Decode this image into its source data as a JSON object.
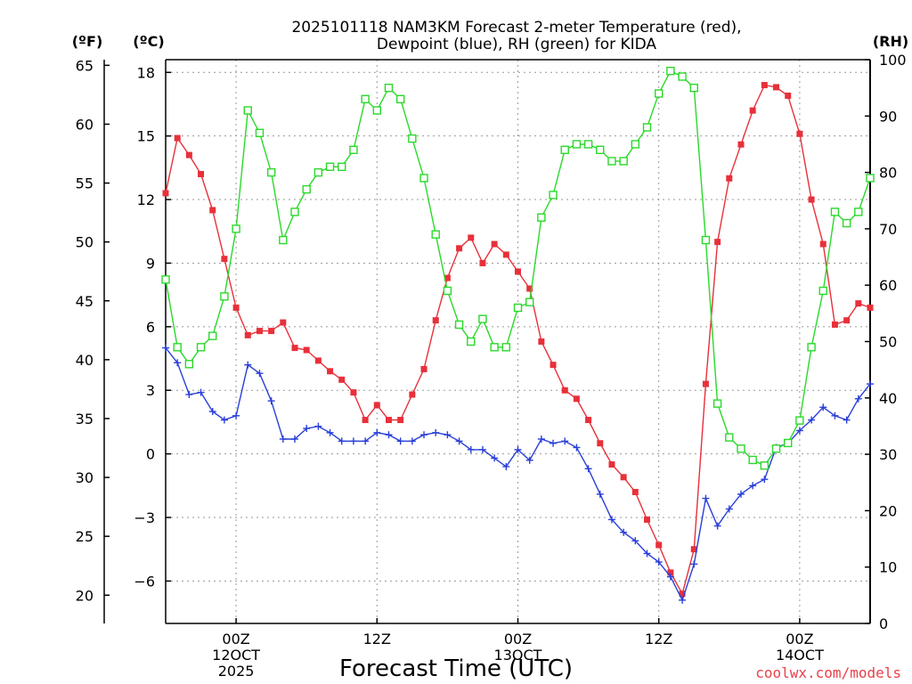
{
  "chart_data": {
    "type": "line",
    "title_line1": "2025101118 NAM3KM Forecast 2-meter Temperature (red),",
    "title_line2": "Dewpoint (blue), RH (green) for KIDA",
    "xlabel": "Forecast Time (UTC)",
    "credit": "coolwx.com/models",
    "units": {
      "fahrenheit": "(ºF)",
      "celsius": "(ºC)",
      "rh": "(RH)"
    },
    "x_hours_range": [
      0,
      60
    ],
    "celsius_axis": {
      "range": [
        -8.0,
        18.6
      ],
      "ticks": [
        18,
        15,
        12,
        9,
        6,
        3,
        0,
        -3,
        -6
      ],
      "tick_labels": [
        "18",
        "15",
        "12",
        "9",
        "6",
        "3",
        "0",
        "−3",
        "−6"
      ]
    },
    "fahrenheit_axis": {
      "ticks": [
        65,
        60,
        55,
        50,
        45,
        40,
        35,
        30,
        25,
        20
      ],
      "tick_labels": [
        "65",
        "60",
        "55",
        "50",
        "45",
        "40",
        "35",
        "30",
        "25",
        "20"
      ]
    },
    "rh_axis": {
      "range": [
        0,
        100
      ],
      "ticks": [
        100,
        90,
        80,
        70,
        60,
        50,
        40,
        30,
        20,
        10,
        0
      ],
      "tick_labels": [
        "100",
        "90",
        "80",
        "70",
        "60",
        "50",
        "40",
        "30",
        "20",
        "10",
        "0"
      ]
    },
    "x_tick_hours": [
      6,
      18,
      30,
      42,
      54
    ],
    "x_tick_labels": [
      [
        "00Z",
        "12OCT",
        "2025"
      ],
      [
        "12Z"
      ],
      [
        "00Z",
        "13OCT"
      ],
      [
        "12Z"
      ],
      [
        "00Z",
        "14OCT"
      ]
    ],
    "series": [
      {
        "name": "2-meter Temperature",
        "axis": "celsius",
        "color": "#e8303a",
        "marker": "filled-square",
        "values": [
          12.3,
          14.9,
          14.1,
          13.2,
          11.5,
          9.2,
          6.9,
          5.6,
          5.8,
          5.8,
          6.2,
          5.0,
          4.9,
          4.4,
          3.9,
          3.5,
          2.9,
          1.6,
          2.3,
          1.6,
          1.6,
          2.8,
          4.0,
          6.3,
          8.3,
          9.7,
          10.2,
          9.0,
          9.9,
          9.4,
          8.6,
          7.8,
          5.3,
          4.2,
          3.0,
          2.6,
          1.6,
          0.5,
          -0.5,
          -1.1,
          -1.8,
          -3.1,
          -4.3,
          -5.6,
          -6.6,
          -4.5,
          3.3,
          10.0,
          13.0,
          14.6,
          16.2,
          17.4,
          17.3,
          16.9,
          15.1,
          12.0,
          9.9,
          6.1,
          6.3,
          7.1,
          6.9
        ]
      },
      {
        "name": "Dewpoint",
        "axis": "celsius",
        "color": "#2a3fd8",
        "marker": "plus",
        "values": [
          5.0,
          4.3,
          2.8,
          2.9,
          2.0,
          1.6,
          1.8,
          4.2,
          3.8,
          2.5,
          0.7,
          0.7,
          1.2,
          1.3,
          1.0,
          0.6,
          0.6,
          0.6,
          1.0,
          0.9,
          0.6,
          0.6,
          0.9,
          1.0,
          0.9,
          0.6,
          0.2,
          0.2,
          -0.2,
          -0.6,
          0.2,
          -0.3,
          0.7,
          0.5,
          0.6,
          0.3,
          -0.7,
          -1.9,
          -3.1,
          -3.7,
          -4.1,
          -4.7,
          -5.1,
          -5.8,
          -6.9,
          -5.2,
          -2.1,
          -3.4,
          -2.6,
          -1.9,
          -1.5,
          -1.2,
          0.3,
          0.5,
          1.1,
          1.6,
          2.2,
          1.8,
          1.6,
          2.6,
          3.3
        ]
      },
      {
        "name": "RH",
        "axis": "rh",
        "color": "#2ad92a",
        "marker": "open-square",
        "values": [
          61,
          49,
          46,
          49,
          51,
          58,
          70,
          91,
          87,
          80,
          68,
          73,
          77,
          80,
          81,
          81,
          84,
          93,
          91,
          95,
          93,
          86,
          79,
          69,
          59,
          53,
          50,
          54,
          49,
          49,
          56,
          57,
          72,
          76,
          84,
          85,
          85,
          84,
          82,
          82,
          85,
          88,
          94,
          98,
          97,
          95,
          68,
          39,
          33,
          31,
          29,
          28,
          31,
          32,
          36,
          49,
          59,
          73,
          71,
          73,
          79
        ]
      }
    ]
  }
}
